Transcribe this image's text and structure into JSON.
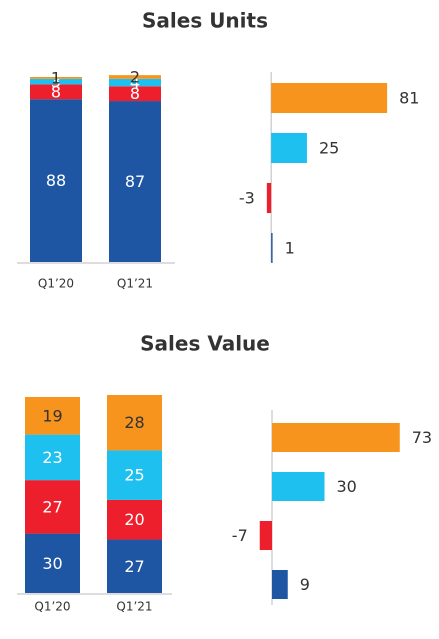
{
  "chart_data": [
    {
      "type": "stacked_bar",
      "title": "Sales Units",
      "categories": [
        "Q1’20",
        "Q1’21"
      ],
      "ylim": [
        0,
        100
      ],
      "series": [
        {
          "color": "#1f56a3",
          "label_color": "#ffffff",
          "values": [
            88,
            87
          ]
        },
        {
          "color": "#ee1f2d",
          "label_color": "#ffffff",
          "values": [
            8,
            8
          ]
        },
        {
          "color": "#1dc0ef",
          "label_color": "#ffffff",
          "values": [
            3,
            4
          ]
        },
        {
          "color": "#f7941d",
          "label_color": "#333333",
          "values": [
            1,
            2
          ]
        }
      ]
    },
    {
      "type": "hbar",
      "values": [
        81,
        25,
        -3,
        1
      ],
      "colors": [
        "#f7941d",
        "#1dc0ef",
        "#ee1f2d",
        "#1f56a3"
      ],
      "xlim": [
        -5,
        90
      ]
    },
    {
      "type": "stacked_bar",
      "title": "Sales Value",
      "categories": [
        "Q1’20",
        "Q1’21"
      ],
      "ylim": [
        0,
        100
      ],
      "series": [
        {
          "color": "#1f56a3",
          "label_color": "#ffffff",
          "values": [
            30,
            27
          ]
        },
        {
          "color": "#ee1f2d",
          "label_color": "#ffffff",
          "values": [
            27,
            20
          ]
        },
        {
          "color": "#1dc0ef",
          "label_color": "#ffffff",
          "values": [
            23,
            25
          ]
        },
        {
          "color": "#f7941d",
          "label_color": "#333333",
          "values": [
            19,
            28
          ]
        }
      ]
    },
    {
      "type": "hbar",
      "values": [
        73,
        30,
        -7,
        9
      ],
      "colors": [
        "#f7941d",
        "#1dc0ef",
        "#ee1f2d",
        "#1f56a3"
      ],
      "xlim": [
        -10,
        80
      ]
    }
  ]
}
